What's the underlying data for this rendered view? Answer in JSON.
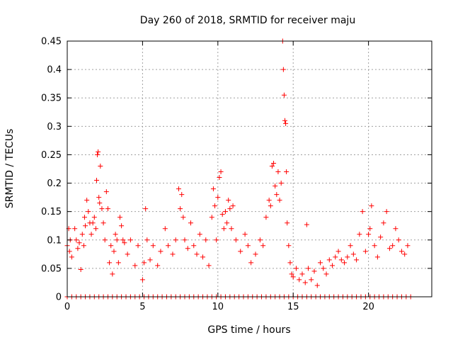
{
  "chart_data": {
    "type": "scatter",
    "title": "Day 260 of 2018, SRMTID for receiver maju",
    "xlabel": "GPS time / hours",
    "ylabel": "SRMTID / TECUs",
    "xlim": [
      0,
      24.2
    ],
    "ylim": [
      0,
      0.45
    ],
    "grid": true,
    "marker": "+",
    "series_color": "#ff0000",
    "axis_color": "#000000",
    "grid_color": "#a0a0a0",
    "x_ticks": [
      0,
      5,
      10,
      15,
      20
    ],
    "x_tick_labels": [
      "0",
      "5",
      "10",
      "15",
      "20"
    ],
    "y_ticks": [
      0,
      0.05,
      0.1,
      0.15,
      0.2,
      0.25,
      0.3,
      0.35,
      0.4,
      0.45
    ],
    "y_tick_labels": [
      "0",
      "0.05",
      "0.1",
      "0.15",
      "0.2",
      "0.25",
      "0.3",
      "0.35",
      "0.4",
      "0.45"
    ],
    "series": [
      {
        "name": "SRMTID",
        "points": [
          [
            0.0,
            0.09
          ],
          [
            0.1,
            0.12
          ],
          [
            0.15,
            0.08
          ],
          [
            0.2,
            0.1
          ],
          [
            0.3,
            0.07
          ],
          [
            0.5,
            0.12
          ],
          [
            0.6,
            0.1
          ],
          [
            0.7,
            0.085
          ],
          [
            0.8,
            0.095
          ],
          [
            0.9,
            0.048
          ],
          [
            1.0,
            0.11
          ],
          [
            1.1,
            0.09
          ],
          [
            1.15,
            0.14
          ],
          [
            1.2,
            0.125
          ],
          [
            1.3,
            0.17
          ],
          [
            1.4,
            0.15
          ],
          [
            1.5,
            0.13
          ],
          [
            1.6,
            0.11
          ],
          [
            1.7,
            0.13
          ],
          [
            1.8,
            0.14
          ],
          [
            1.9,
            0.12
          ],
          [
            1.95,
            0.205
          ],
          [
            2.0,
            0.25
          ],
          [
            2.05,
            0.255
          ],
          [
            2.1,
            0.175
          ],
          [
            2.15,
            0.165
          ],
          [
            2.2,
            0.23
          ],
          [
            2.3,
            0.155
          ],
          [
            2.4,
            0.13
          ],
          [
            2.5,
            0.1
          ],
          [
            2.6,
            0.185
          ],
          [
            2.7,
            0.155
          ],
          [
            2.8,
            0.06
          ],
          [
            2.9,
            0.09
          ],
          [
            3.0,
            0.04
          ],
          [
            3.1,
            0.08
          ],
          [
            3.2,
            0.11
          ],
          [
            3.3,
            0.1
          ],
          [
            3.4,
            0.06
          ],
          [
            3.5,
            0.14
          ],
          [
            3.6,
            0.125
          ],
          [
            3.7,
            0.1
          ],
          [
            3.8,
            0.095
          ],
          [
            4.0,
            0.075
          ],
          [
            4.2,
            0.1
          ],
          [
            4.5,
            0.055
          ],
          [
            4.7,
            0.09
          ],
          [
            5.0,
            0.03
          ],
          [
            5.1,
            0.06
          ],
          [
            5.2,
            0.155
          ],
          [
            5.3,
            0.1
          ],
          [
            5.5,
            0.065
          ],
          [
            5.7,
            0.09
          ],
          [
            6.0,
            0.055
          ],
          [
            6.2,
            0.08
          ],
          [
            6.5,
            0.12
          ],
          [
            6.7,
            0.09
          ],
          [
            7.0,
            0.075
          ],
          [
            7.2,
            0.1
          ],
          [
            7.4,
            0.19
          ],
          [
            7.5,
            0.155
          ],
          [
            7.6,
            0.18
          ],
          [
            7.7,
            0.14
          ],
          [
            7.8,
            0.1
          ],
          [
            8.0,
            0.085
          ],
          [
            8.2,
            0.13
          ],
          [
            8.4,
            0.09
          ],
          [
            8.6,
            0.075
          ],
          [
            8.8,
            0.11
          ],
          [
            9.0,
            0.07
          ],
          [
            9.2,
            0.1
          ],
          [
            9.4,
            0.055
          ],
          [
            9.6,
            0.14
          ],
          [
            9.7,
            0.19
          ],
          [
            9.8,
            0.16
          ],
          [
            9.9,
            0.1
          ],
          [
            10.0,
            0.175
          ],
          [
            10.1,
            0.21
          ],
          [
            10.2,
            0.22
          ],
          [
            10.3,
            0.145
          ],
          [
            10.4,
            0.12
          ],
          [
            10.5,
            0.15
          ],
          [
            10.6,
            0.13
          ],
          [
            10.7,
            0.17
          ],
          [
            10.8,
            0.155
          ],
          [
            10.9,
            0.12
          ],
          [
            11.0,
            0.16
          ],
          [
            11.2,
            0.1
          ],
          [
            11.5,
            0.08
          ],
          [
            11.8,
            0.11
          ],
          [
            12.0,
            0.09
          ],
          [
            12.2,
            0.06
          ],
          [
            12.5,
            0.075
          ],
          [
            12.8,
            0.1
          ],
          [
            13.0,
            0.09
          ],
          [
            13.2,
            0.14
          ],
          [
            13.4,
            0.17
          ],
          [
            13.5,
            0.16
          ],
          [
            13.6,
            0.23
          ],
          [
            13.7,
            0.235
          ],
          [
            13.8,
            0.195
          ],
          [
            13.9,
            0.18
          ],
          [
            14.0,
            0.22
          ],
          [
            14.1,
            0.17
          ],
          [
            14.2,
            0.2
          ],
          [
            14.3,
            0.45
          ],
          [
            14.35,
            0.4
          ],
          [
            14.4,
            0.355
          ],
          [
            14.45,
            0.31
          ],
          [
            14.5,
            0.305
          ],
          [
            14.55,
            0.22
          ],
          [
            14.6,
            0.13
          ],
          [
            14.7,
            0.09
          ],
          [
            14.8,
            0.06
          ],
          [
            14.9,
            0.04
          ],
          [
            15.0,
            0.035
          ],
          [
            15.2,
            0.05
          ],
          [
            15.4,
            0.03
          ],
          [
            15.6,
            0.04
          ],
          [
            15.8,
            0.025
          ],
          [
            15.9,
            0.127
          ],
          [
            16.0,
            0.05
          ],
          [
            16.2,
            0.03
          ],
          [
            16.4,
            0.045
          ],
          [
            16.6,
            0.02
          ],
          [
            16.8,
            0.06
          ],
          [
            17.0,
            0.05
          ],
          [
            17.2,
            0.04
          ],
          [
            17.4,
            0.065
          ],
          [
            17.6,
            0.055
          ],
          [
            17.8,
            0.07
          ],
          [
            18.0,
            0.08
          ],
          [
            18.2,
            0.065
          ],
          [
            18.4,
            0.06
          ],
          [
            18.6,
            0.07
          ],
          [
            18.8,
            0.09
          ],
          [
            19.0,
            0.075
          ],
          [
            19.2,
            0.065
          ],
          [
            19.4,
            0.11
          ],
          [
            19.6,
            0.15
          ],
          [
            19.8,
            0.08
          ],
          [
            20.0,
            0.11
          ],
          [
            20.1,
            0.12
          ],
          [
            20.2,
            0.16
          ],
          [
            20.4,
            0.09
          ],
          [
            20.6,
            0.07
          ],
          [
            20.8,
            0.105
          ],
          [
            21.0,
            0.13
          ],
          [
            21.2,
            0.15
          ],
          [
            21.4,
            0.085
          ],
          [
            21.6,
            0.09
          ],
          [
            21.8,
            0.12
          ],
          [
            22.0,
            0.1
          ],
          [
            22.2,
            0.08
          ],
          [
            22.4,
            0.075
          ],
          [
            22.6,
            0.09
          ]
        ],
        "baseline_zero_x": [
          0.0,
          0.3,
          0.6,
          0.9,
          1.2,
          1.5,
          1.8,
          2.1,
          2.4,
          2.7,
          3.0,
          3.3,
          3.6,
          3.9,
          4.2,
          4.5,
          4.8,
          5.1,
          5.4,
          5.7,
          6.0,
          6.3,
          6.6,
          6.9,
          7.2,
          7.5,
          7.8,
          8.1,
          8.4,
          8.7,
          9.0,
          9.3,
          9.6,
          9.9,
          10.2,
          10.5,
          10.8,
          11.1,
          11.4,
          11.7,
          12.0,
          12.3,
          12.6,
          12.9,
          13.2,
          13.5,
          13.8,
          14.1,
          14.4,
          14.7,
          15.0,
          15.3,
          15.6,
          15.9,
          16.2,
          16.5,
          16.8,
          17.1,
          17.4,
          17.7,
          18.0,
          18.3,
          18.6,
          18.9,
          19.2,
          19.5,
          19.8,
          20.1,
          20.4,
          20.7,
          21.0,
          21.3,
          21.6,
          21.9,
          22.2,
          22.5,
          22.8
        ]
      }
    ]
  }
}
